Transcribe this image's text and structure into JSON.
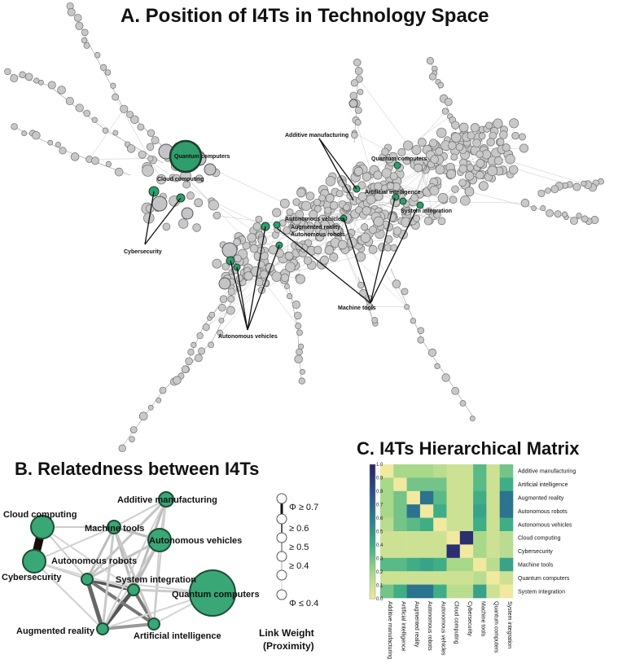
{
  "panel_a": {
    "title": "A. Position of I4Ts in Technology Space",
    "labels": [
      "Quantum computers",
      "Cloud computing",
      "Cybersecurity",
      "Additive manufacturing",
      "Quantum computers",
      "Artificial intelligence",
      "System integration",
      "Autonomous vehicles",
      "Augmented reality",
      "Autonomous robots",
      "Machine tools",
      "Autonomous vehicles"
    ]
  },
  "panel_b": {
    "title": "B. Relatedness between I4Ts",
    "nodes": [
      "Cloud computing",
      "Cybersecurity",
      "Machine tools",
      "Additive manufacturing",
      "Autonomous vehicles",
      "Autonomous robots",
      "System integration",
      "Quantum computers",
      "Augmented reality",
      "Artificial intelligence"
    ],
    "legend_ticks": [
      "Φ ≥ 0.7",
      "≥ 0.6",
      "≥ 0.5",
      "≥ 0.4",
      "Φ ≤ 0.4"
    ],
    "legend_title_1": "Link Weight",
    "legend_title_2": "(Proximity)"
  },
  "panel_c": {
    "title": "C. I4Ts Hierarchical Matrix",
    "technologies": [
      "Additive manufacturing",
      "Artificial intelligence",
      "Augmented reality",
      "Autonomous robots",
      "Autonomous vehicles",
      "Cloud computing",
      "Cybersecurity",
      "Machine tools",
      "Quantum computers",
      "System integration"
    ],
    "colorbar_ticks": [
      "0.0",
      "0.1",
      "0.2",
      "0.3",
      "0.4",
      "0.5",
      "0.6",
      "0.7",
      "0.8",
      "0.9",
      "1.0"
    ]
  },
  "chart_data": {
    "type": "heatmap",
    "title": "C. I4Ts Hierarchical Matrix",
    "rows": [
      "Additive manufacturing",
      "Artificial intelligence",
      "Augmented reality",
      "Autonomous robots",
      "Autonomous vehicles",
      "Cloud computing",
      "Cybersecurity",
      "Machine tools",
      "Quantum computers",
      "System integration"
    ],
    "cols": [
      "Additive manufacturing",
      "Artificial intelligence",
      "Augmented reality",
      "Autonomous robots",
      "Autonomous vehicles",
      "Cloud computing",
      "Cybersecurity",
      "Machine tools",
      "Quantum computers",
      "System integration"
    ],
    "values": [
      [
        0.0,
        0.2,
        0.2,
        0.2,
        0.15,
        0.1,
        0.1,
        0.35,
        0.1,
        0.3
      ],
      [
        0.2,
        0.0,
        0.3,
        0.3,
        0.3,
        0.1,
        0.1,
        0.35,
        0.1,
        0.4
      ],
      [
        0.2,
        0.3,
        0.0,
        0.65,
        0.35,
        0.1,
        0.1,
        0.4,
        0.1,
        0.65
      ],
      [
        0.2,
        0.3,
        0.65,
        0.0,
        0.4,
        0.1,
        0.1,
        0.45,
        0.1,
        0.65
      ],
      [
        0.15,
        0.3,
        0.35,
        0.4,
        0.0,
        0.1,
        0.1,
        0.4,
        0.1,
        0.4
      ],
      [
        0.1,
        0.1,
        0.1,
        0.1,
        0.1,
        0.0,
        0.95,
        0.2,
        0.1,
        0.15
      ],
      [
        0.1,
        0.1,
        0.1,
        0.1,
        0.1,
        0.95,
        0.0,
        0.2,
        0.1,
        0.15
      ],
      [
        0.35,
        0.35,
        0.4,
        0.45,
        0.4,
        0.2,
        0.2,
        0.0,
        0.15,
        0.45
      ],
      [
        0.1,
        0.1,
        0.1,
        0.1,
        0.1,
        0.1,
        0.1,
        0.15,
        0.0,
        0.1
      ],
      [
        0.3,
        0.4,
        0.65,
        0.65,
        0.4,
        0.15,
        0.15,
        0.45,
        0.1,
        0.0
      ]
    ],
    "vmin": 0.0,
    "vmax": 1.0,
    "colorscale": [
      "#f1e9a0",
      "#a8d88a",
      "#3fae86",
      "#2a7f8e",
      "#2c4f8c",
      "#2b2466"
    ]
  }
}
